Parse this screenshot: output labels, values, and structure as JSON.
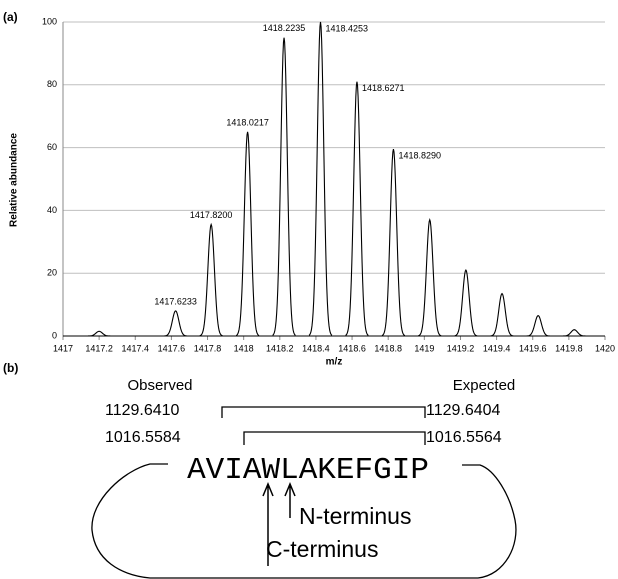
{
  "panel_labels": [
    "(a)",
    "(b)"
  ],
  "chart_data": {
    "type": "line",
    "xlabel": "m/z",
    "ylabel": "Relative abundance",
    "x": [
      1417.2,
      1417.6233,
      1417.82,
      1418.0217,
      1418.2235,
      1418.4253,
      1418.6271,
      1418.829,
      1419.03,
      1419.23,
      1419.43,
      1419.63,
      1419.83
    ],
    "values": [
      1.5,
      8,
      35.5,
      65,
      95,
      100,
      81,
      59.5,
      37,
      21,
      13.5,
      6.5,
      2
    ],
    "peak_labels": [
      null,
      "1417.6233",
      "1417.8200",
      "1418.0217",
      "1418.2235",
      "1418.4253",
      "1418.6271",
      "1418.8290",
      null,
      null,
      null,
      null,
      null
    ],
    "color": "#000000",
    "xlim": [
      1417,
      1420
    ],
    "xticks": [
      1417,
      1417.2,
      1417.4,
      1417.6,
      1417.8,
      1418,
      1418.2,
      1418.4,
      1418.6,
      1418.8,
      1419,
      1419.2,
      1419.4,
      1419.6,
      1419.8,
      1420
    ],
    "ylim": [
      0,
      100
    ],
    "yticks": [
      0,
      20,
      40,
      60,
      80,
      100
    ],
    "grid": true
  },
  "diagram": {
    "observed_label": "Observed",
    "expected_label": "Expected",
    "rows": [
      {
        "observed": "1129.6410",
        "expected": "1129.6404"
      },
      {
        "observed": "1016.5584",
        "expected": "1016.5564"
      }
    ],
    "sequence": "AVIAWLAKEFGIP",
    "n_terminus": "N-terminus",
    "c_terminus": "C-terminus"
  }
}
